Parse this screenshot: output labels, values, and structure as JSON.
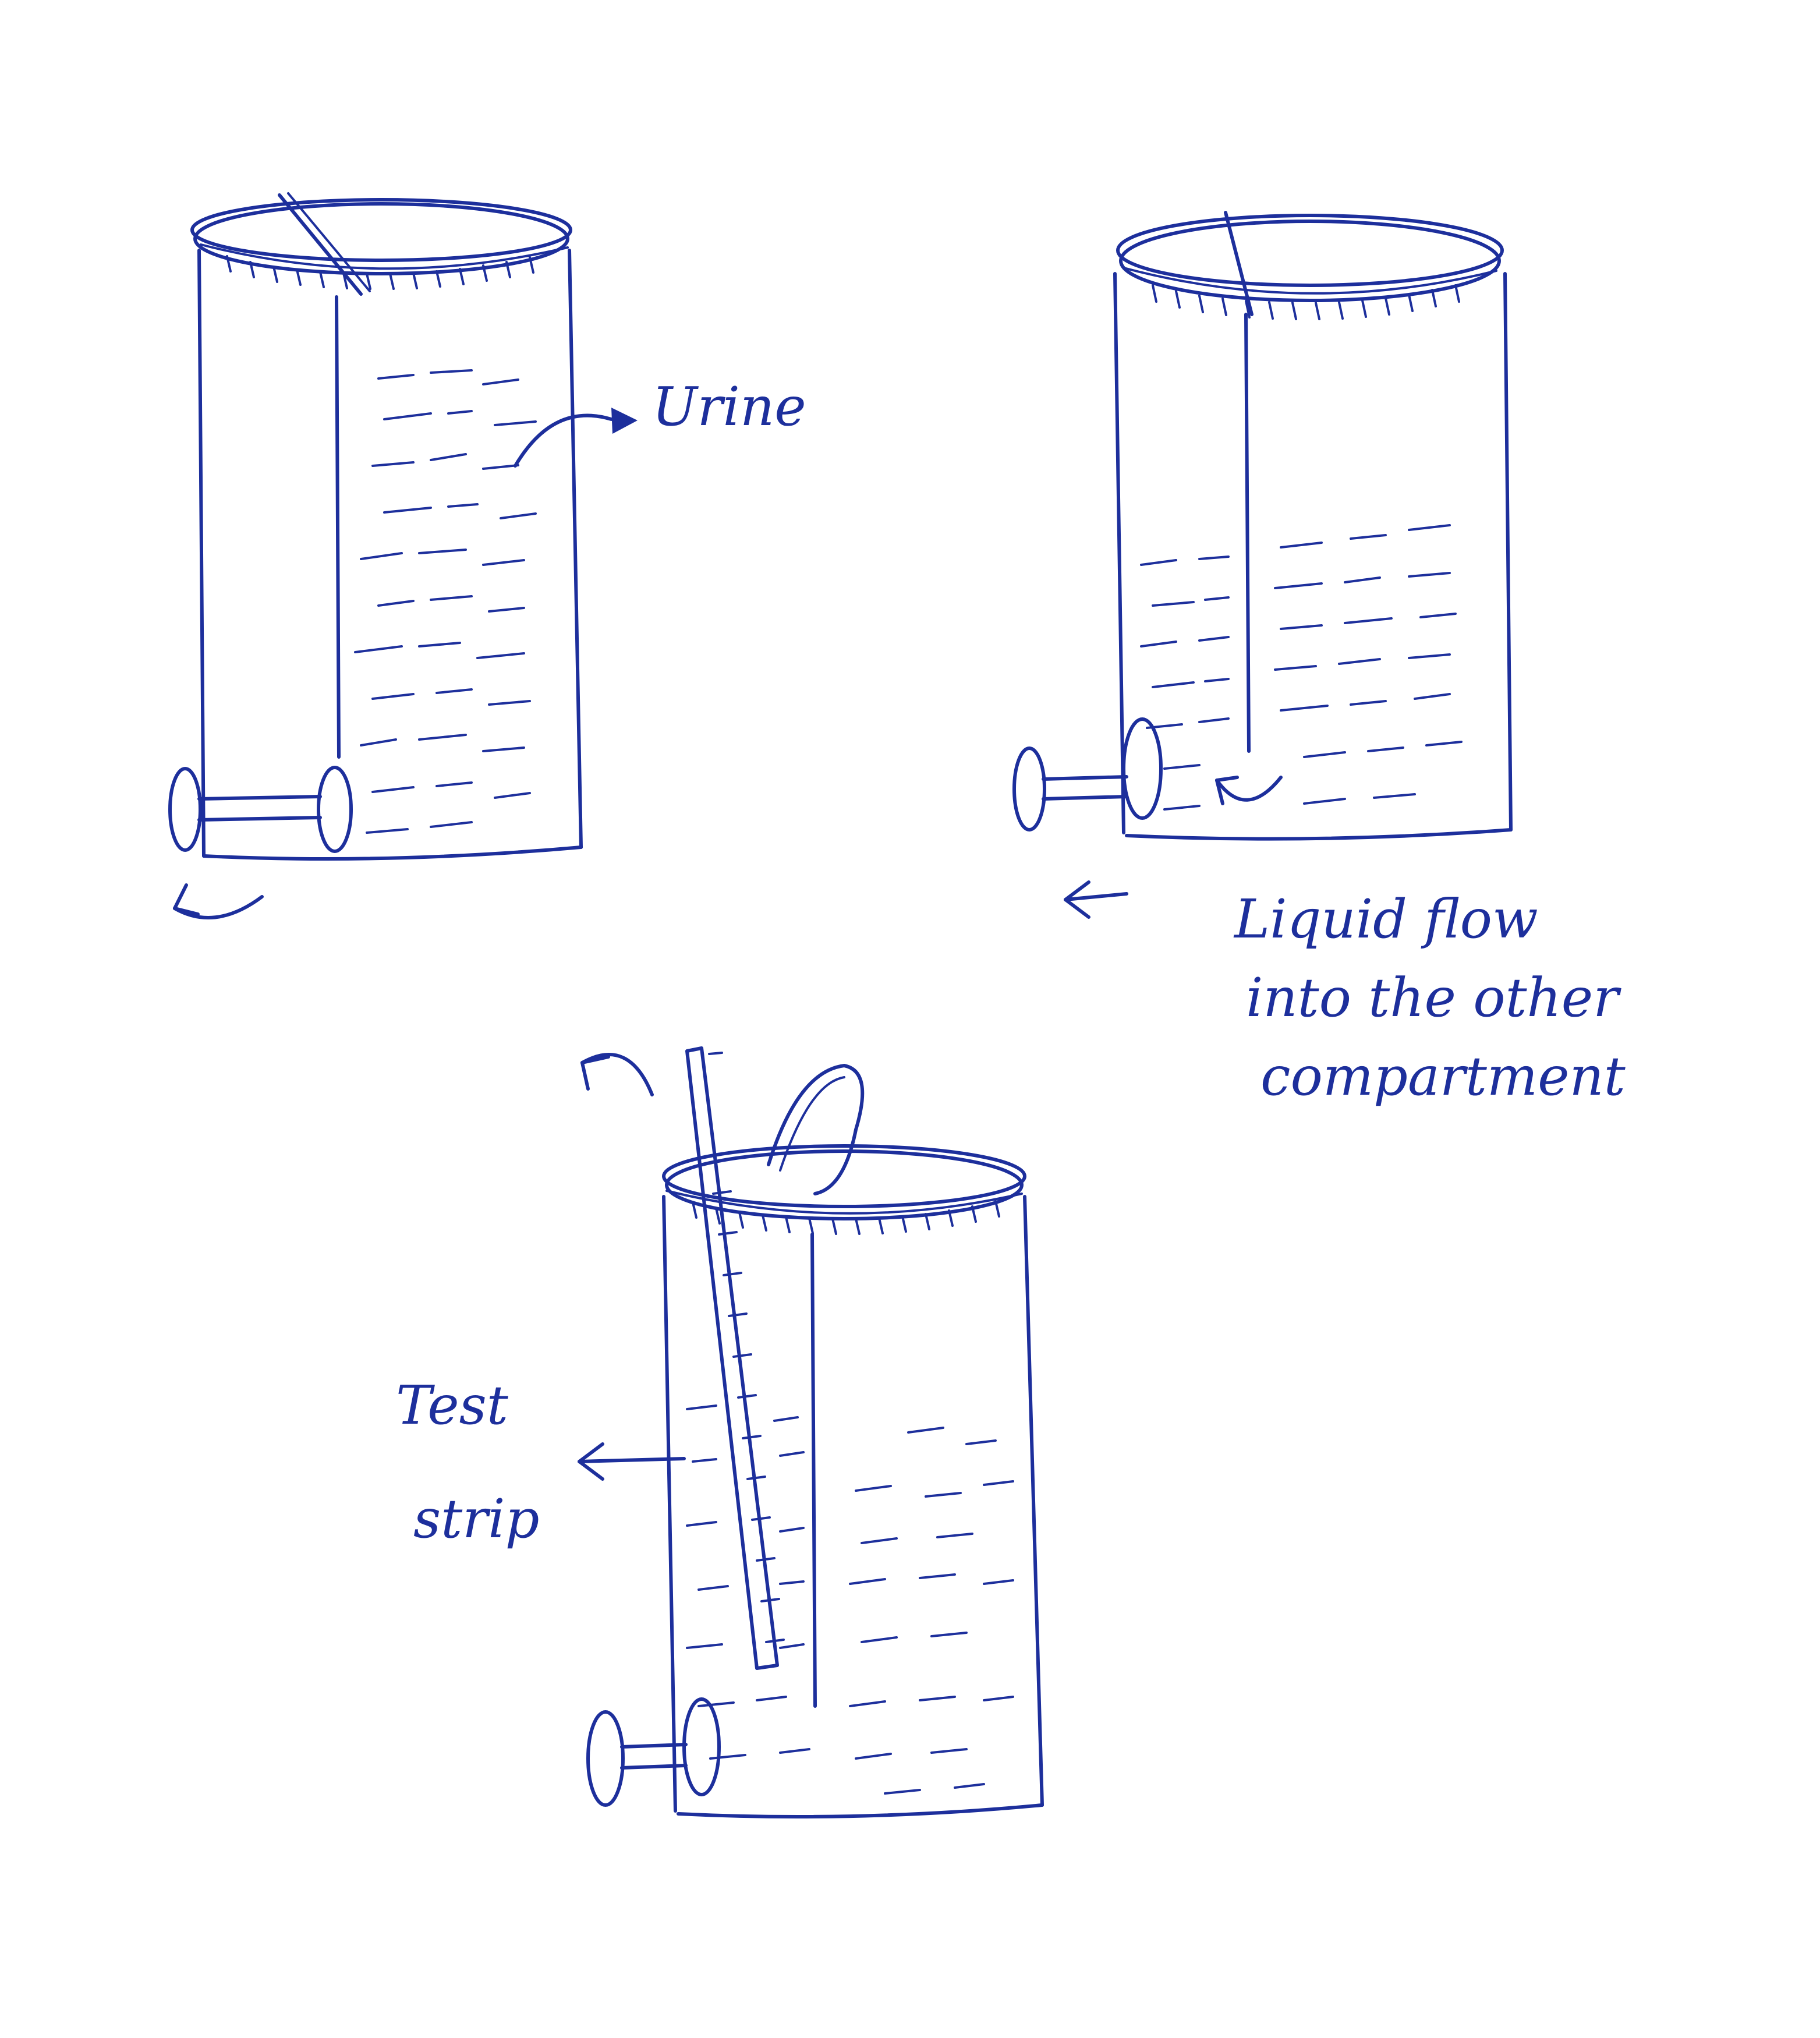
{
  "labels": {
    "urine": "Urine",
    "liquid_flow": [
      "Liquid flow",
      "into the other",
      "compartment"
    ],
    "test_strip": [
      "Test",
      "strip"
    ]
  },
  "colors": {
    "ink": "#1d2f9c",
    "paper": "#ffffff"
  }
}
